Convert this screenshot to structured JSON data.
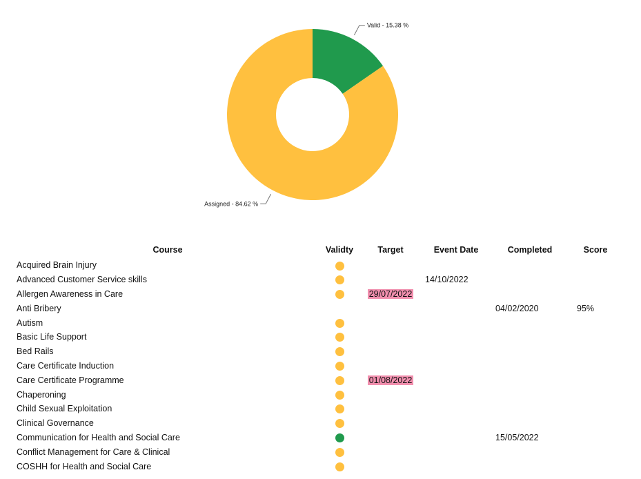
{
  "chart_data": {
    "type": "pie",
    "donut": true,
    "slices": [
      {
        "label": "Valid - 15.38 %",
        "value": 15.38,
        "color": "#209a4d"
      },
      {
        "label": "Assigned - 84.62 %",
        "value": 84.62,
        "color": "#ffc03f"
      }
    ]
  },
  "table": {
    "headers": {
      "course": "Course",
      "validity": "Validty",
      "target": "Target",
      "event_date": "Event Date",
      "completed": "Completed",
      "score": "Score"
    },
    "rows": [
      {
        "course": "Acquired Brain Injury",
        "status": "assigned",
        "target": "",
        "target_overdue": false,
        "event_date": "",
        "completed": "",
        "score": ""
      },
      {
        "course": "Advanced Customer Service skills",
        "status": "assigned",
        "target": "",
        "target_overdue": false,
        "event_date": "14/10/2022",
        "completed": "",
        "score": ""
      },
      {
        "course": "Allergen Awareness in Care",
        "status": "assigned",
        "target": "29/07/2022",
        "target_overdue": true,
        "event_date": "",
        "completed": "",
        "score": ""
      },
      {
        "course": "Anti Bribery",
        "status": "",
        "target": "",
        "target_overdue": false,
        "event_date": "",
        "completed": "04/02/2020",
        "score": "95%"
      },
      {
        "course": "Autism",
        "status": "assigned",
        "target": "",
        "target_overdue": false,
        "event_date": "",
        "completed": "",
        "score": ""
      },
      {
        "course": "Basic Life Support",
        "status": "assigned",
        "target": "",
        "target_overdue": false,
        "event_date": "",
        "completed": "",
        "score": ""
      },
      {
        "course": "Bed Rails",
        "status": "assigned",
        "target": "",
        "target_overdue": false,
        "event_date": "",
        "completed": "",
        "score": ""
      },
      {
        "course": "Care Certificate Induction",
        "status": "assigned",
        "target": "",
        "target_overdue": false,
        "event_date": "",
        "completed": "",
        "score": ""
      },
      {
        "course": "Care Certificate Programme",
        "status": "assigned",
        "target": "01/08/2022",
        "target_overdue": true,
        "event_date": "",
        "completed": "",
        "score": ""
      },
      {
        "course": "Chaperoning",
        "status": "assigned",
        "target": "",
        "target_overdue": false,
        "event_date": "",
        "completed": "",
        "score": ""
      },
      {
        "course": "Child Sexual Exploitation",
        "status": "assigned",
        "target": "",
        "target_overdue": false,
        "event_date": "",
        "completed": "",
        "score": ""
      },
      {
        "course": "Clinical Governance",
        "status": "assigned",
        "target": "",
        "target_overdue": false,
        "event_date": "",
        "completed": "",
        "score": ""
      },
      {
        "course": "Communication for Health and Social Care",
        "status": "valid",
        "target": "",
        "target_overdue": false,
        "event_date": "",
        "completed": "15/05/2022",
        "score": ""
      },
      {
        "course": "Conflict Management for Care & Clinical",
        "status": "assigned",
        "target": "",
        "target_overdue": false,
        "event_date": "",
        "completed": "",
        "score": ""
      },
      {
        "course": "COSHH for Health and Social Care",
        "status": "assigned",
        "target": "",
        "target_overdue": false,
        "event_date": "",
        "completed": "",
        "score": ""
      }
    ]
  }
}
